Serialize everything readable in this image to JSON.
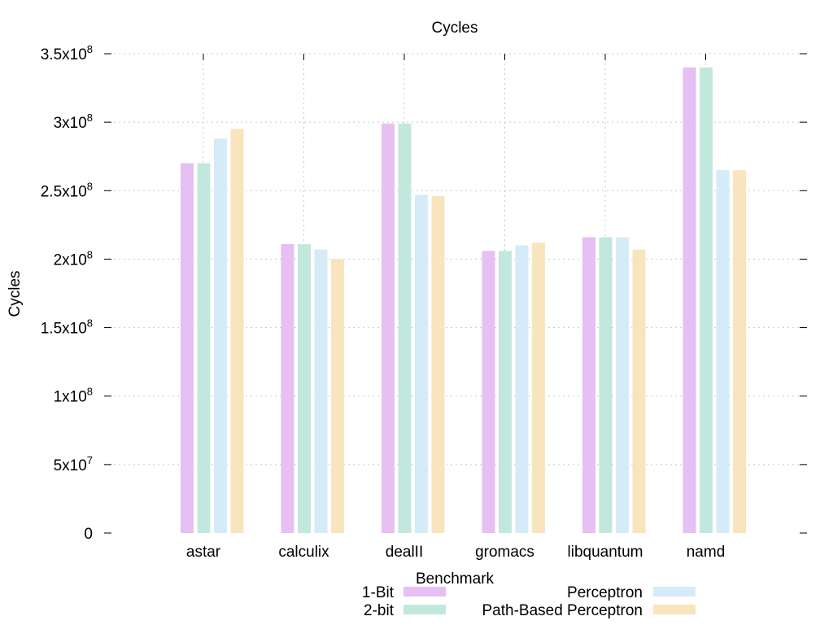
{
  "chart_data": {
    "type": "bar",
    "title": "Cycles",
    "xlabel": "Benchmark",
    "ylabel": "Cycles",
    "categories": [
      "astar",
      "calculix",
      "dealII",
      "gromacs",
      "libquantum",
      "namd"
    ],
    "ylim": [
      0,
      350000000
    ],
    "yticks": [
      {
        "value": 0,
        "mantissa": "0",
        "exp": ""
      },
      {
        "value": 50000000,
        "mantissa": "5x10",
        "exp": "7"
      },
      {
        "value": 100000000,
        "mantissa": "1x10",
        "exp": "8"
      },
      {
        "value": 150000000,
        "mantissa": "1.5x10",
        "exp": "8"
      },
      {
        "value": 200000000,
        "mantissa": "2x10",
        "exp": "8"
      },
      {
        "value": 250000000,
        "mantissa": "2.5x10",
        "exp": "8"
      },
      {
        "value": 300000000,
        "mantissa": "3x10",
        "exp": "8"
      },
      {
        "value": 350000000,
        "mantissa": "3.5x10",
        "exp": "8"
      }
    ],
    "grid": true,
    "legend_position": "bottom",
    "series": [
      {
        "name": "1-Bit",
        "color": "#e6bff3",
        "values": [
          270000000,
          211000000,
          299000000,
          206000000,
          216000000,
          340000000
        ]
      },
      {
        "name": "2-bit",
        "color": "#c2e8dd",
        "values": [
          270000000,
          211000000,
          299000000,
          206000000,
          216000000,
          340000000
        ]
      },
      {
        "name": "Perceptron",
        "color": "#d5ebf8",
        "values": [
          288000000,
          207000000,
          247000000,
          210000000,
          216000000,
          265000000
        ]
      },
      {
        "name": "Path-Based Perceptron",
        "color": "#f8e5bd",
        "values": [
          295000000,
          200000000,
          246000000,
          212000000,
          207000000,
          265000000
        ]
      }
    ]
  }
}
